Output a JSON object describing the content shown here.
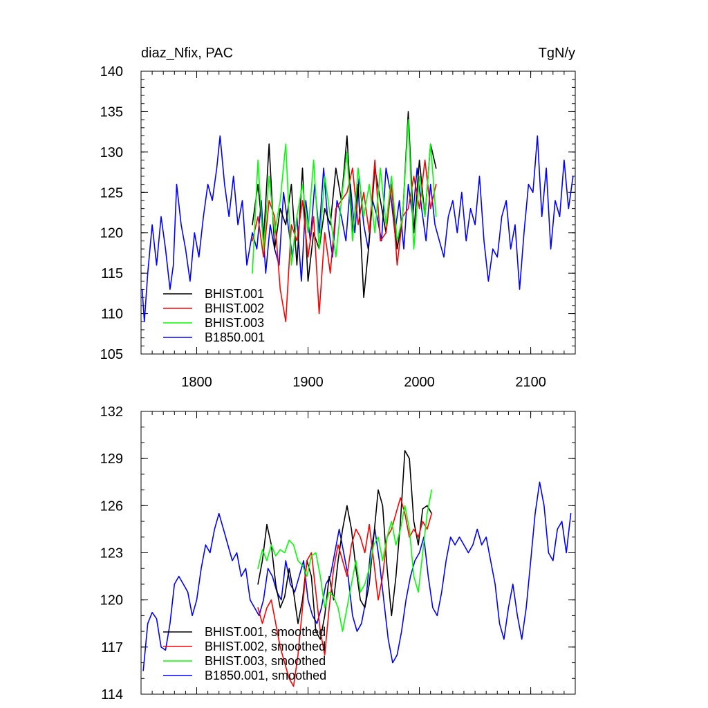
{
  "chart_data": [
    {
      "type": "line",
      "title": "diaz_Nfix, PAC",
      "units": "TgN/y",
      "xlim": [
        1750,
        2140
      ],
      "ylim": [
        105,
        140
      ],
      "x_ticks": [
        1800,
        1900,
        2000,
        2100
      ],
      "y_ticks": [
        105,
        110,
        115,
        120,
        125,
        130,
        135,
        140
      ],
      "legend": "bottom-left",
      "grid": false,
      "series": [
        {
          "name": "BHIST.001",
          "color": "#000000",
          "x": [
            1850,
            1855,
            1860,
            1865,
            1870,
            1875,
            1880,
            1885,
            1890,
            1895,
            1900,
            1905,
            1910,
            1915,
            1920,
            1925,
            1930,
            1935,
            1940,
            1945,
            1950,
            1955,
            1960,
            1965,
            1970,
            1975,
            1980,
            1985,
            1990,
            1995,
            2000,
            2005,
            2010,
            2015
          ],
          "y": [
            121,
            126,
            119,
            131,
            118,
            123,
            121,
            126,
            116,
            128,
            114,
            120,
            118,
            123,
            121,
            128,
            124,
            132,
            120,
            126,
            112,
            119,
            128,
            124,
            120,
            126,
            118,
            122,
            135,
            120,
            129,
            122,
            131,
            128
          ]
        },
        {
          "name": "BHIST.002",
          "color": "#ff0000",
          "x": [
            1850,
            1855,
            1860,
            1865,
            1870,
            1875,
            1880,
            1885,
            1890,
            1895,
            1900,
            1905,
            1910,
            1915,
            1920,
            1925,
            1930,
            1935,
            1940,
            1945,
            1950,
            1955,
            1960,
            1965,
            1970,
            1975,
            1980,
            1985,
            1990,
            1995,
            2000,
            2005,
            2010,
            2015
          ],
          "y": [
            119,
            122,
            117,
            124,
            122,
            113,
            109,
            121,
            119,
            124,
            117,
            122,
            110,
            120,
            115,
            123,
            124,
            125,
            128,
            121,
            125,
            120,
            129,
            119,
            120,
            126,
            116,
            122,
            123,
            127,
            123,
            129,
            123,
            126
          ]
        },
        {
          "name": "BHIST.003",
          "color": "#00ff00",
          "x": [
            1850,
            1855,
            1860,
            1865,
            1870,
            1875,
            1880,
            1885,
            1890,
            1895,
            1900,
            1905,
            1910,
            1915,
            1920,
            1925,
            1930,
            1935,
            1940,
            1945,
            1950,
            1955,
            1960,
            1965,
            1970,
            1975,
            1980,
            1985,
            1990,
            1995,
            2000,
            2005,
            2010,
            2015
          ],
          "y": [
            115,
            129,
            118,
            127,
            120,
            124,
            131,
            116,
            122,
            126,
            120,
            129,
            118,
            127,
            122,
            117,
            124,
            130,
            119,
            128,
            122,
            126,
            120,
            128,
            121,
            127,
            119,
            122,
            134,
            118,
            127,
            122,
            131,
            122
          ]
        },
        {
          "name": "B1850.001",
          "color": "#0000ff",
          "x": [
            1751,
            1753,
            1756,
            1760,
            1764,
            1768,
            1772,
            1776,
            1779,
            1782,
            1786,
            1790,
            1794,
            1798,
            1802,
            1806,
            1810,
            1814,
            1818,
            1821,
            1825,
            1829,
            1833,
            1837,
            1841,
            1845,
            1850,
            1854,
            1858,
            1862,
            1866,
            1870,
            1874,
            1878,
            1882,
            1886,
            1890,
            1894,
            1898,
            1902,
            1906,
            1910,
            1914,
            1918,
            1922,
            1926,
            1930,
            1934,
            1938,
            1942,
            1946,
            1950,
            1954,
            1958,
            1962,
            1966,
            1970,
            1974,
            1978,
            1982,
            1986,
            1990,
            1994,
            1998,
            2002,
            2006,
            2010,
            2014,
            2018,
            2022,
            2026,
            2030,
            2034,
            2038,
            2042,
            2046,
            2050,
            2054,
            2058,
            2062,
            2066,
            2070,
            2074,
            2078,
            2082,
            2086,
            2090,
            2094,
            2098,
            2102,
            2106,
            2110,
            2114,
            2118,
            2122,
            2126,
            2130,
            2134,
            2138
          ],
          "y": [
            113,
            109,
            115,
            121,
            116,
            122,
            118,
            113,
            116,
            126,
            121,
            118,
            114,
            120,
            117,
            122,
            126,
            124,
            128,
            132,
            126,
            122,
            127,
            121,
            124,
            116,
            120,
            118,
            124,
            115,
            121,
            118,
            116,
            125,
            121,
            117,
            122,
            114,
            124,
            119,
            126,
            120,
            128,
            121,
            117,
            124,
            122,
            119,
            126,
            120,
            127,
            121,
            118,
            124,
            122,
            119,
            128,
            125,
            120,
            124,
            118,
            126,
            122,
            128,
            123,
            119,
            126,
            121,
            119,
            117,
            122,
            124,
            120,
            125,
            119,
            123,
            121,
            127,
            119,
            114,
            118,
            117,
            122,
            124,
            118,
            121,
            113,
            120,
            126,
            125,
            132,
            122,
            128,
            118,
            124,
            122,
            129,
            123,
            127
          ]
        }
      ]
    },
    {
      "type": "line",
      "xlim": [
        1750,
        2140
      ],
      "ylim": [
        114,
        132
      ],
      "x_ticks": [
        1800,
        1900,
        2000,
        2100
      ],
      "y_ticks": [
        114,
        117,
        120,
        123,
        126,
        129,
        132
      ],
      "legend": "bottom-left",
      "grid": false,
      "series": [
        {
          "name": "BHIST.001, smoothed",
          "color": "#000000",
          "x": [
            1855,
            1859,
            1863,
            1867,
            1871,
            1875,
            1879,
            1883,
            1887,
            1891,
            1895,
            1899,
            1903,
            1907,
            1911,
            1915,
            1919,
            1923,
            1927,
            1931,
            1935,
            1939,
            1943,
            1947,
            1951,
            1955,
            1959,
            1963,
            1967,
            1971,
            1975,
            1979,
            1983,
            1987,
            1991,
            1995,
            1999,
            2003,
            2007,
            2011
          ],
          "y": [
            121.0,
            122.5,
            124.8,
            123.5,
            121.0,
            119.5,
            120.2,
            122.0,
            120.5,
            118.5,
            120.0,
            122.5,
            121.5,
            118.0,
            117.5,
            119.0,
            121.5,
            120.0,
            122.5,
            124.5,
            126.0,
            124.5,
            122.0,
            120.0,
            119.5,
            121.0,
            124.0,
            127.0,
            126.0,
            122.0,
            119.0,
            121.5,
            125.0,
            129.5,
            129.0,
            125.0,
            123.5,
            125.8,
            126.0,
            125.5
          ]
        },
        {
          "name": "BHIST.002, smoothed",
          "color": "#ff0000",
          "x": [
            1855,
            1859,
            1863,
            1867,
            1871,
            1875,
            1879,
            1883,
            1887,
            1891,
            1895,
            1899,
            1903,
            1907,
            1911,
            1915,
            1919,
            1923,
            1927,
            1931,
            1935,
            1939,
            1943,
            1947,
            1951,
            1955,
            1959,
            1963,
            1967,
            1971,
            1975,
            1979,
            1983,
            1987,
            1991,
            1995,
            1999,
            2003,
            2007,
            2011
          ],
          "y": [
            119.5,
            118.5,
            119.5,
            120.0,
            118.5,
            117.0,
            116.0,
            115.0,
            114.5,
            116.5,
            119.5,
            122.5,
            123.0,
            120.5,
            118.0,
            116.5,
            119.5,
            122.0,
            123.5,
            122.5,
            121.5,
            123.5,
            124.5,
            124.0,
            123.0,
            124.8,
            122.5,
            120.0,
            121.5,
            124.0,
            124.5,
            125.5,
            126.5,
            125.5,
            124.0,
            124.5,
            124.0,
            125.0,
            124.5,
            125.5
          ]
        },
        {
          "name": "BHIST.003, smoothed",
          "color": "#00ff00",
          "x": [
            1855,
            1859,
            1863,
            1867,
            1871,
            1875,
            1879,
            1883,
            1887,
            1891,
            1895,
            1899,
            1903,
            1907,
            1911,
            1915,
            1919,
            1923,
            1927,
            1931,
            1935,
            1939,
            1943,
            1947,
            1951,
            1955,
            1959,
            1963,
            1967,
            1971,
            1975,
            1979,
            1983,
            1987,
            1991,
            1995,
            1999,
            2003,
            2007,
            2011
          ],
          "y": [
            122.0,
            123.2,
            122.5,
            123.5,
            122.8,
            123.2,
            123.0,
            123.8,
            123.5,
            122.5,
            122.2,
            121.5,
            122.8,
            123.0,
            121.5,
            119.5,
            120.5,
            120.2,
            119.5,
            118.0,
            119.5,
            121.0,
            122.5,
            120.5,
            121.0,
            122.0,
            123.5,
            124.0,
            122.5,
            124.0,
            125.0,
            123.5,
            124.5,
            126.0,
            124.5,
            121.5,
            120.5,
            123.0,
            125.5,
            127.0
          ]
        },
        {
          "name": "B1850.001, smoothed",
          "color": "#0000ff",
          "x": [
            1752,
            1756,
            1760,
            1764,
            1768,
            1772,
            1776,
            1780,
            1784,
            1788,
            1792,
            1796,
            1800,
            1804,
            1808,
            1812,
            1816,
            1820,
            1824,
            1828,
            1832,
            1836,
            1840,
            1844,
            1848,
            1852,
            1856,
            1860,
            1864,
            1868,
            1872,
            1876,
            1880,
            1884,
            1888,
            1892,
            1896,
            1900,
            1904,
            1908,
            1912,
            1916,
            1920,
            1924,
            1928,
            1932,
            1936,
            1940,
            1944,
            1948,
            1952,
            1956,
            1960,
            1964,
            1968,
            1972,
            1976,
            1980,
            1984,
            1988,
            1992,
            1996,
            2000,
            2004,
            2008,
            2012,
            2016,
            2020,
            2024,
            2028,
            2032,
            2036,
            2040,
            2044,
            2048,
            2052,
            2056,
            2060,
            2064,
            2068,
            2072,
            2076,
            2080,
            2084,
            2088,
            2092,
            2096,
            2100,
            2104,
            2108,
            2112,
            2116,
            2120,
            2124,
            2128,
            2132,
            2136
          ],
          "y": [
            115.5,
            118.5,
            119.2,
            118.8,
            117.0,
            116.8,
            118.5,
            121.0,
            121.5,
            121.0,
            120.5,
            119.0,
            120.0,
            122.0,
            123.5,
            123.0,
            124.5,
            125.5,
            124.5,
            123.5,
            122.5,
            123.0,
            121.5,
            122.0,
            120.0,
            119.5,
            119.0,
            120.0,
            122.0,
            121.5,
            120.5,
            120.0,
            122.5,
            121.0,
            120.5,
            121.5,
            122.5,
            120.0,
            119.0,
            118.5,
            119.5,
            121.0,
            121.5,
            123.0,
            124.5,
            123.0,
            121.5,
            119.0,
            118.0,
            118.5,
            120.0,
            123.0,
            124.5,
            122.5,
            120.0,
            117.5,
            116.0,
            116.5,
            118.0,
            120.0,
            121.5,
            122.5,
            123.0,
            124.0,
            121.5,
            119.5,
            119.0,
            120.5,
            122.5,
            124.0,
            123.5,
            124.0,
            123.5,
            123.0,
            123.5,
            124.5,
            123.5,
            124.0,
            122.5,
            121.0,
            118.5,
            117.5,
            119.5,
            121.0,
            119.0,
            117.5,
            119.5,
            122.5,
            125.5,
            127.5,
            126.0,
            123.0,
            122.5,
            124.5,
            125.0,
            123.0,
            125.5
          ]
        }
      ]
    }
  ]
}
